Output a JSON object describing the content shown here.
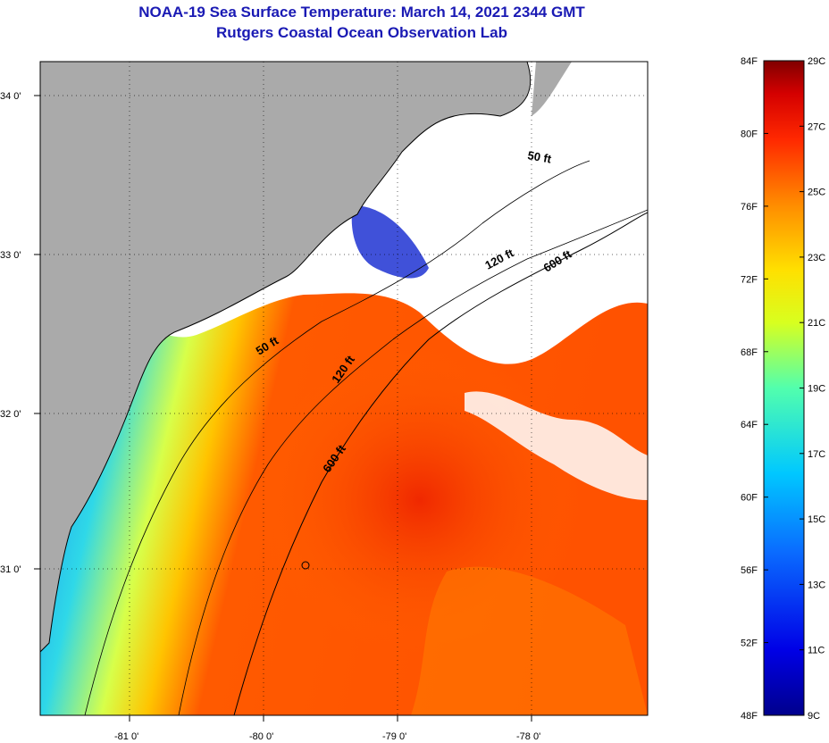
{
  "header": {
    "title_line1": "NOAA-19 Sea Surface Temperature:  March 14, 2021 2344 GMT",
    "title_line2": "Rutgers Coastal Ocean Observation Lab"
  },
  "map": {
    "lat_ticks": [
      "34 0'",
      "33 0'",
      "32 0'",
      "31 0'"
    ],
    "lon_ticks": [
      "-81 0'",
      "-80 0'",
      "-79 0'",
      "-78 0'"
    ],
    "contours": {
      "c50a": "50 ft",
      "c50b": "50 ft",
      "c120a": "120 ft",
      "c120b": "120 ft",
      "c600a": "600 ft",
      "c600b": "600 ft"
    },
    "colors": {
      "land": "#aaaaaa",
      "cloud": "#ffffff",
      "coast_line": "#000000"
    }
  },
  "colorbar": {
    "fahrenheit_labels": [
      "84F",
      "80F",
      "76F",
      "72F",
      "68F",
      "64F",
      "60F",
      "56F",
      "52F",
      "48F"
    ],
    "celsius_labels": [
      "29C",
      "27C",
      "25C",
      "23C",
      "21C",
      "19C",
      "17C",
      "15C",
      "13C",
      "11C",
      "9C"
    ],
    "fahrenheit_range": [
      48,
      84
    ],
    "celsius_range": [
      9,
      29
    ]
  }
}
